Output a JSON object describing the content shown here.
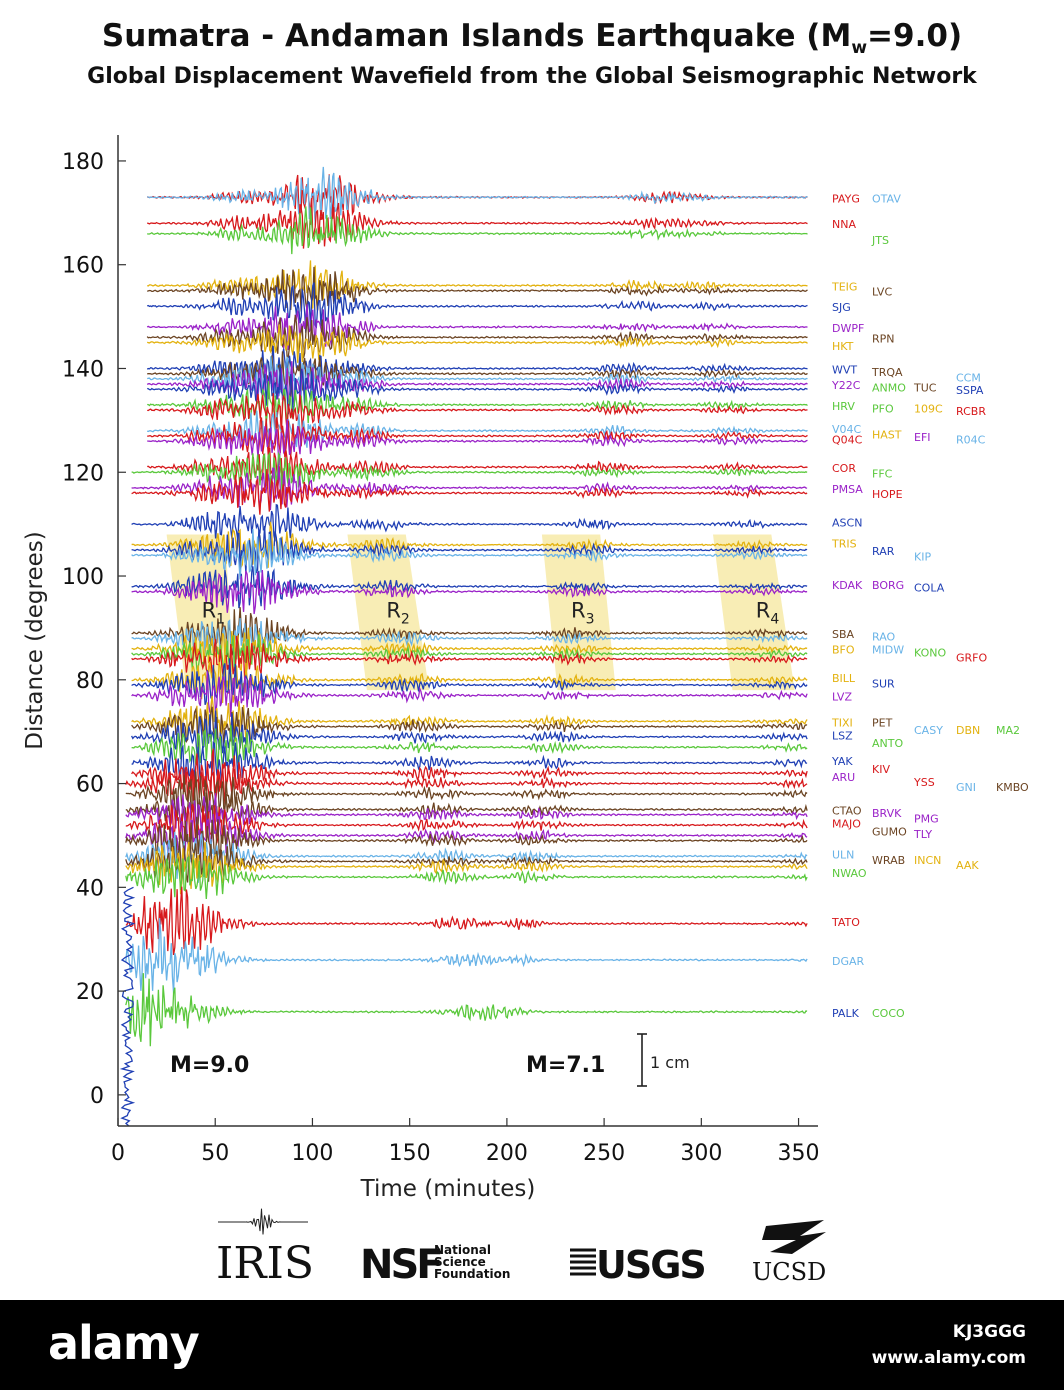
{
  "title_main": "Sumatra - Andaman Islands Earthquake (M",
  "title_sub_w": "w",
  "title_tail": "=9.0)",
  "subtitle": "Global Displacement Wavefield from the Global Seismographic Network",
  "colors": {
    "red": "#d7191c",
    "blue": "#1f3fb4",
    "lightblue": "#69b3e7",
    "green": "#5ac83c",
    "yellow": "#e3b20f",
    "brown": "#6b4423",
    "purple": "#9a22c8",
    "band": "#f7eaa8"
  },
  "chart_data": {
    "type": "line",
    "xlabel": "Time (minutes)",
    "ylabel": "Distance (degrees)",
    "xlim": [
      0,
      360
    ],
    "ylim": [
      -6,
      185
    ],
    "x_ticks": [
      "0",
      "50",
      "100",
      "150",
      "200",
      "250",
      "300",
      "350"
    ],
    "y_ticks": [
      "0",
      "20",
      "40",
      "60",
      "80",
      "100",
      "120",
      "140",
      "160",
      "180"
    ],
    "phase_labels": [
      {
        "text": "R",
        "sub": "1",
        "x": 43,
        "y": 92
      },
      {
        "text": "R",
        "sub": "2",
        "x": 138,
        "y": 92
      },
      {
        "text": "R",
        "sub": "3",
        "x": 233,
        "y": 92
      },
      {
        "text": "R",
        "sub": "4",
        "x": 328,
        "y": 92
      }
    ],
    "annotations": {
      "mainshock": "M=9.0",
      "aftershock": "M=7.1",
      "scale_bar": "1 cm"
    },
    "traces": [
      {
        "dist": 173,
        "color": "red"
      },
      {
        "dist": 173,
        "color": "lightblue"
      },
      {
        "dist": 168,
        "color": "red"
      },
      {
        "dist": 166,
        "color": "green"
      },
      {
        "dist": 156,
        "color": "yellow"
      },
      {
        "dist": 155,
        "color": "brown"
      },
      {
        "dist": 152,
        "color": "blue"
      },
      {
        "dist": 148,
        "color": "purple"
      },
      {
        "dist": 146,
        "color": "brown"
      },
      {
        "dist": 145,
        "color": "yellow"
      },
      {
        "dist": 140,
        "color": "blue"
      },
      {
        "dist": 139,
        "color": "brown"
      },
      {
        "dist": 138,
        "color": "lightblue"
      },
      {
        "dist": 137,
        "color": "purple"
      },
      {
        "dist": 136,
        "color": "blue"
      },
      {
        "dist": 133,
        "color": "green"
      },
      {
        "dist": 132,
        "color": "red"
      },
      {
        "dist": 128,
        "color": "lightblue"
      },
      {
        "dist": 127,
        "color": "red"
      },
      {
        "dist": 126,
        "color": "purple"
      },
      {
        "dist": 121,
        "color": "red"
      },
      {
        "dist": 120,
        "color": "green"
      },
      {
        "dist": 117,
        "color": "purple"
      },
      {
        "dist": 116,
        "color": "red"
      },
      {
        "dist": 110,
        "color": "blue"
      },
      {
        "dist": 106,
        "color": "yellow"
      },
      {
        "dist": 105,
        "color": "blue"
      },
      {
        "dist": 104,
        "color": "lightblue"
      },
      {
        "dist": 98,
        "color": "blue"
      },
      {
        "dist": 97,
        "color": "purple"
      },
      {
        "dist": 89,
        "color": "brown"
      },
      {
        "dist": 88,
        "color": "lightblue"
      },
      {
        "dist": 86,
        "color": "yellow"
      },
      {
        "dist": 85,
        "color": "green"
      },
      {
        "dist": 84,
        "color": "red"
      },
      {
        "dist": 80,
        "color": "yellow"
      },
      {
        "dist": 79,
        "color": "blue"
      },
      {
        "dist": 77,
        "color": "purple"
      },
      {
        "dist": 72,
        "color": "yellow"
      },
      {
        "dist": 71,
        "color": "brown"
      },
      {
        "dist": 69,
        "color": "blue"
      },
      {
        "dist": 67,
        "color": "green"
      },
      {
        "dist": 64,
        "color": "blue"
      },
      {
        "dist": 62,
        "color": "red"
      },
      {
        "dist": 60,
        "color": "red"
      },
      {
        "dist": 58,
        "color": "brown"
      },
      {
        "dist": 55,
        "color": "brown"
      },
      {
        "dist": 54,
        "color": "purple"
      },
      {
        "dist": 52,
        "color": "red"
      },
      {
        "dist": 50,
        "color": "purple"
      },
      {
        "dist": 49,
        "color": "brown"
      },
      {
        "dist": 46,
        "color": "lightblue"
      },
      {
        "dist": 45,
        "color": "brown"
      },
      {
        "dist": 44,
        "color": "yellow"
      },
      {
        "dist": 42,
        "color": "green"
      },
      {
        "dist": 33,
        "color": "red"
      },
      {
        "dist": 26,
        "color": "lightblue"
      },
      {
        "dist": 16,
        "color": "green"
      }
    ],
    "stations": [
      {
        "name": "PAYG",
        "dist": 173,
        "col": 0,
        "color": "red"
      },
      {
        "name": "OTAV",
        "dist": 173,
        "col": 1,
        "color": "lightblue"
      },
      {
        "name": "NNA",
        "dist": 168,
        "col": 0,
        "color": "red"
      },
      {
        "name": "JTS",
        "dist": 165,
        "col": 1,
        "color": "green"
      },
      {
        "name": "TEIG",
        "dist": 156,
        "col": 0,
        "color": "yellow"
      },
      {
        "name": "LVC",
        "dist": 155,
        "col": 1,
        "color": "brown"
      },
      {
        "name": "SJG",
        "dist": 152,
        "col": 0,
        "color": "blue"
      },
      {
        "name": "DWPF",
        "dist": 148,
        "col": 0,
        "color": "purple"
      },
      {
        "name": "RPN",
        "dist": 146,
        "col": 1,
        "color": "brown"
      },
      {
        "name": "HKT",
        "dist": 144.5,
        "col": 0,
        "color": "yellow"
      },
      {
        "name": "WVT",
        "dist": 140,
        "col": 0,
        "color": "blue"
      },
      {
        "name": "TRQA",
        "dist": 139.5,
        "col": 1,
        "color": "brown"
      },
      {
        "name": "CCM",
        "dist": 138.5,
        "col": 3,
        "color": "lightblue"
      },
      {
        "name": "Y22C",
        "dist": 137,
        "col": 0,
        "color": "purple"
      },
      {
        "name": "ANMO",
        "dist": 136.5,
        "col": 1,
        "color": "green"
      },
      {
        "name": "TUC",
        "dist": 136.5,
        "col": 2,
        "color": "brown"
      },
      {
        "name": "SSPA",
        "dist": 136,
        "col": 3,
        "color": "blue"
      },
      {
        "name": "HRV",
        "dist": 133,
        "col": 0,
        "color": "green"
      },
      {
        "name": "PFO",
        "dist": 132.5,
        "col": 1,
        "color": "green"
      },
      {
        "name": "109C",
        "dist": 132.5,
        "col": 2,
        "color": "yellow"
      },
      {
        "name": "RCBR",
        "dist": 132,
        "col": 3,
        "color": "red"
      },
      {
        "name": "V04C",
        "dist": 128.5,
        "col": 0,
        "color": "lightblue"
      },
      {
        "name": "Q04C",
        "dist": 126.5,
        "col": 0,
        "color": "red"
      },
      {
        "name": "HAST",
        "dist": 127.5,
        "col": 1,
        "color": "yellow"
      },
      {
        "name": "EFI",
        "dist": 127,
        "col": 2,
        "color": "purple"
      },
      {
        "name": "R04C",
        "dist": 126.5,
        "col": 3,
        "color": "lightblue"
      },
      {
        "name": "COR",
        "dist": 121,
        "col": 0,
        "color": "red"
      },
      {
        "name": "FFC",
        "dist": 120,
        "col": 1,
        "color": "green"
      },
      {
        "name": "PMSA",
        "dist": 117,
        "col": 0,
        "color": "purple"
      },
      {
        "name": "HOPE",
        "dist": 116,
        "col": 1,
        "color": "red"
      },
      {
        "name": "ASCN",
        "dist": 110.5,
        "col": 0,
        "color": "blue"
      },
      {
        "name": "TRIS",
        "dist": 106.5,
        "col": 0,
        "color": "yellow"
      },
      {
        "name": "RAR",
        "dist": 105,
        "col": 1,
        "color": "blue"
      },
      {
        "name": "KIP",
        "dist": 104,
        "col": 2,
        "color": "lightblue"
      },
      {
        "name": "KDAK",
        "dist": 98.5,
        "col": 0,
        "color": "purple"
      },
      {
        "name": "BORG",
        "dist": 98.5,
        "col": 1,
        "color": "purple"
      },
      {
        "name": "COLA",
        "dist": 98,
        "col": 2,
        "color": "blue"
      },
      {
        "name": "SBA",
        "dist": 89,
        "col": 0,
        "color": "brown"
      },
      {
        "name": "RAO",
        "dist": 88.5,
        "col": 1,
        "color": "lightblue"
      },
      {
        "name": "BFO",
        "dist": 86,
        "col": 0,
        "color": "yellow"
      },
      {
        "name": "MIDW",
        "dist": 86,
        "col": 1,
        "color": "lightblue"
      },
      {
        "name": "KONO",
        "dist": 85.5,
        "col": 2,
        "color": "green"
      },
      {
        "name": "GRFO",
        "dist": 84.5,
        "col": 3,
        "color": "red"
      },
      {
        "name": "BILL",
        "dist": 80.5,
        "col": 0,
        "color": "yellow"
      },
      {
        "name": "SUR",
        "dist": 79.5,
        "col": 1,
        "color": "blue"
      },
      {
        "name": "LVZ",
        "dist": 77,
        "col": 0,
        "color": "purple"
      },
      {
        "name": "TIXI",
        "dist": 72,
        "col": 0,
        "color": "yellow"
      },
      {
        "name": "PET",
        "dist": 72,
        "col": 1,
        "color": "brown"
      },
      {
        "name": "CASY",
        "dist": 70.5,
        "col": 2,
        "color": "lightblue"
      },
      {
        "name": "DBN",
        "dist": 70.5,
        "col": 3,
        "color": "yellow"
      },
      {
        "name": "MA2",
        "dist": 70.5,
        "col": 4,
        "color": "green"
      },
      {
        "name": "LSZ",
        "dist": 69.5,
        "col": 0,
        "color": "blue"
      },
      {
        "name": "ANTO",
        "dist": 68,
        "col": 1,
        "color": "green"
      },
      {
        "name": "YAK",
        "dist": 64.5,
        "col": 0,
        "color": "blue"
      },
      {
        "name": "KIV",
        "dist": 63,
        "col": 1,
        "color": "red"
      },
      {
        "name": "ARU",
        "dist": 61.5,
        "col": 0,
        "color": "purple"
      },
      {
        "name": "YSS",
        "dist": 60.5,
        "col": 2,
        "color": "red"
      },
      {
        "name": "GNI",
        "dist": 59.5,
        "col": 3,
        "color": "lightblue"
      },
      {
        "name": "KMBO",
        "dist": 59.5,
        "col": 4,
        "color": "brown"
      },
      {
        "name": "CTAO",
        "dist": 55,
        "col": 0,
        "color": "brown"
      },
      {
        "name": "BRVK",
        "dist": 54.5,
        "col": 1,
        "color": "purple"
      },
      {
        "name": "PMG",
        "dist": 53.5,
        "col": 2,
        "color": "purple"
      },
      {
        "name": "MAJO",
        "dist": 52.5,
        "col": 0,
        "color": "red"
      },
      {
        "name": "GUMO",
        "dist": 51,
        "col": 1,
        "color": "brown"
      },
      {
        "name": "TLY",
        "dist": 50.5,
        "col": 2,
        "color": "purple"
      },
      {
        "name": "ULN",
        "dist": 46.5,
        "col": 0,
        "color": "lightblue"
      },
      {
        "name": "WRAB",
        "dist": 45.5,
        "col": 1,
        "color": "brown"
      },
      {
        "name": "INCN",
        "dist": 45.5,
        "col": 2,
        "color": "yellow"
      },
      {
        "name": "AAK",
        "dist": 44.5,
        "col": 3,
        "color": "yellow"
      },
      {
        "name": "NWAO",
        "dist": 43,
        "col": 0,
        "color": "green"
      },
      {
        "name": "TATO",
        "dist": 33.5,
        "col": 0,
        "color": "red"
      },
      {
        "name": "DGAR",
        "dist": 26,
        "col": 0,
        "color": "lightblue"
      },
      {
        "name": "PALK",
        "dist": 16,
        "col": 0,
        "color": "blue"
      },
      {
        "name": "COCO",
        "dist": 16,
        "col": 1,
        "color": "green"
      }
    ]
  },
  "logos": {
    "iris": "IRIS",
    "nsf_line1": "National",
    "nsf_line2": "Science",
    "nsf_line3": "Foundation",
    "nsf_mark": "NSF",
    "usgs": "USGS",
    "ucsd": "UCSD"
  },
  "watermark": {
    "brand": "alamy",
    "stock_id": "KJ3GGG",
    "url": "www.alamy.com"
  }
}
